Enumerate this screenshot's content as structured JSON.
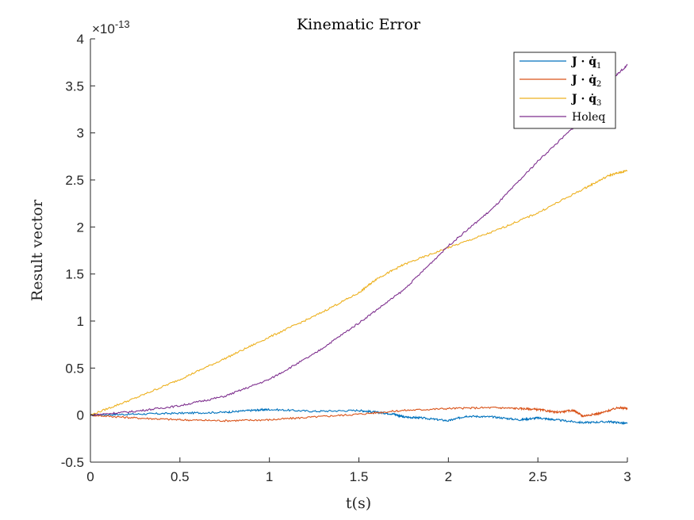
{
  "chart_data": {
    "type": "line",
    "title": "Kinematic Error",
    "xlabel": "t(s)",
    "ylabel": "Result vector",
    "xlim": [
      0,
      3
    ],
    "ylim": [
      -0.5,
      4
    ],
    "y_exponent_label": "×10",
    "y_exponent_power": "-13",
    "xticks": [
      "0",
      "0.5",
      "1",
      "1.5",
      "2",
      "2.5",
      "3"
    ],
    "xtick_values": [
      0,
      0.5,
      1,
      1.5,
      2,
      2.5,
      3
    ],
    "yticks": [
      "-0.5",
      "0",
      "0.5",
      "1",
      "1.5",
      "2",
      "2.5",
      "3",
      "3.5",
      "4"
    ],
    "ytick_values": [
      -0.5,
      0,
      0.5,
      1,
      1.5,
      2,
      2.5,
      3,
      3.5,
      4
    ],
    "grid": false,
    "legend_position": "top-right",
    "series": [
      {
        "name_main": "J · q̇",
        "name_sub": "1",
        "color": "#0072BD",
        "x": [
          0,
          0.25,
          0.5,
          0.75,
          0.9,
          1.0,
          1.25,
          1.5,
          1.6,
          1.7,
          1.75,
          1.85,
          2.0,
          2.1,
          2.25,
          2.4,
          2.5,
          2.6,
          2.75,
          2.9,
          3.0
        ],
        "y": [
          0,
          0.01,
          0.02,
          0.03,
          0.05,
          0.06,
          0.04,
          0.05,
          0.03,
          0.01,
          -0.02,
          -0.03,
          -0.06,
          -0.01,
          -0.02,
          -0.05,
          -0.03,
          -0.05,
          -0.08,
          -0.07,
          -0.09
        ]
      },
      {
        "name_main": "J · q̇",
        "name_sub": "2",
        "color": "#D95319",
        "x": [
          0,
          0.25,
          0.5,
          0.75,
          1.0,
          1.25,
          1.5,
          1.75,
          2.0,
          2.25,
          2.4,
          2.5,
          2.6,
          2.7,
          2.75,
          2.85,
          2.95,
          3.0
        ],
        "y": [
          0,
          -0.03,
          -0.05,
          -0.06,
          -0.05,
          -0.02,
          0.01,
          0.05,
          0.07,
          0.08,
          0.07,
          0.06,
          0.03,
          0.05,
          -0.01,
          0.02,
          0.08,
          0.07
        ]
      },
      {
        "name_main": "J · q̇",
        "name_sub": "3",
        "color": "#EDB120",
        "x": [
          0,
          0.25,
          0.5,
          0.75,
          1.0,
          1.25,
          1.5,
          1.6,
          1.75,
          2.0,
          2.25,
          2.5,
          2.75,
          2.9,
          3.0
        ],
        "y": [
          0,
          0.18,
          0.38,
          0.6,
          0.83,
          1.05,
          1.3,
          1.45,
          1.6,
          1.78,
          1.95,
          2.15,
          2.4,
          2.55,
          2.6
        ]
      },
      {
        "name_main": "Holeq",
        "name_sub": "",
        "color": "#7E2F8E",
        "x": [
          0,
          0.25,
          0.5,
          0.75,
          1.0,
          1.25,
          1.5,
          1.75,
          2.0,
          2.25,
          2.5,
          2.75,
          2.9,
          3.0
        ],
        "y": [
          0,
          0.04,
          0.1,
          0.2,
          0.38,
          0.65,
          0.98,
          1.33,
          1.8,
          2.2,
          2.7,
          3.15,
          3.55,
          3.72
        ]
      }
    ]
  }
}
